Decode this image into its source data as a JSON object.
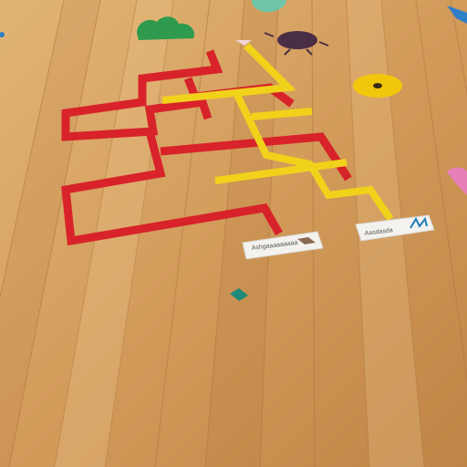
{
  "scene": {
    "description_tags": [
      "wooden-floor",
      "tape-maze-game",
      "floor-cards",
      "floor-decals"
    ],
    "colors": {
      "floor_light": "#dcae6c",
      "floor_mid": "#c99152",
      "floor_dark": "#b07740",
      "red_tape": "#d8232a",
      "yellow_tape": "#f1d21b",
      "green_decal": "#2e9a4e",
      "purple_decal": "#4a2e45",
      "yellow_decal": "#f2c70b",
      "teal_tile": "#1e8a7a",
      "pink_decal": "#e77fb8"
    },
    "cards": [
      {
        "id": "left-card",
        "text": "Ashgaaaaaaaaa"
      },
      {
        "id": "right-card",
        "text": "Aasdasda"
      }
    ]
  }
}
